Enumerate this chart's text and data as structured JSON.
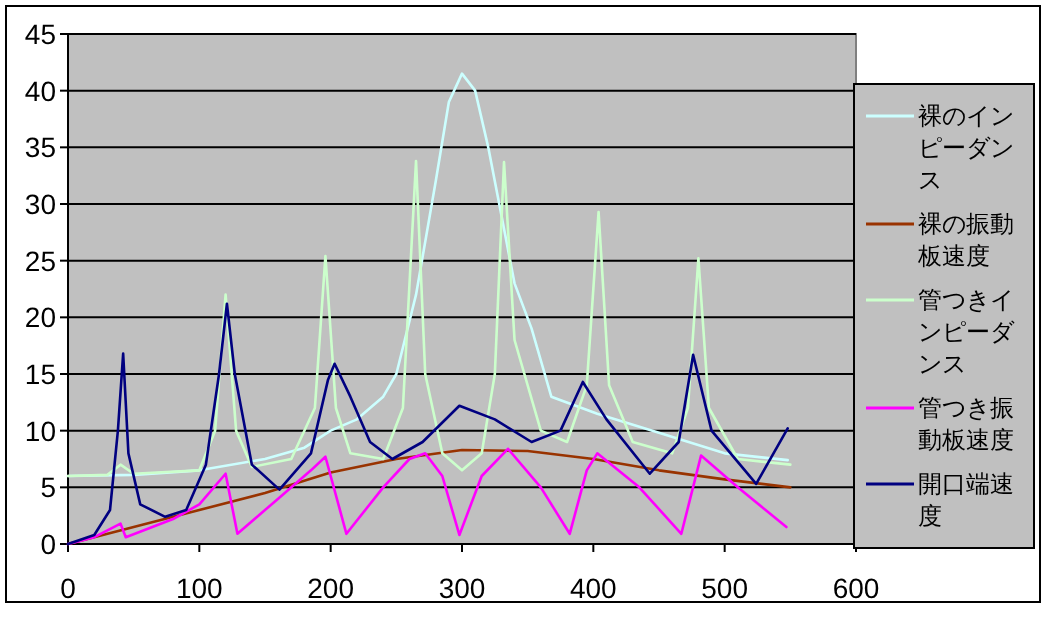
{
  "chart_data": {
    "type": "line",
    "xlim": [
      0,
      600
    ],
    "xticks": [
      0,
      100,
      200,
      300,
      400,
      500,
      600
    ],
    "ylim": [
      0,
      45
    ],
    "yticks": [
      0,
      5,
      10,
      15,
      20,
      25,
      30,
      35,
      40,
      45
    ],
    "grid": "y",
    "legend": "right",
    "marker": "none",
    "line_style": "solid",
    "series": [
      {
        "name": "裸のインピーダンス",
        "color": "#ccffff",
        "x": [
          0,
          50,
          100,
          150,
          180,
          200,
          220,
          240,
          250,
          265,
          280,
          290,
          300,
          310,
          320,
          330,
          340,
          353,
          368,
          403,
          453,
          500,
          548
        ],
        "values": [
          6,
          6.1,
          6.5,
          7.5,
          8.5,
          10,
          11,
          13,
          15,
          22,
          32,
          39,
          41.5,
          40,
          35,
          29,
          23,
          19,
          13,
          11.5,
          9.7,
          8,
          7.4
        ]
      },
      {
        "name": "裸の振動板速度",
        "color": "#993300",
        "x": [
          0,
          50,
          100,
          150,
          200,
          250,
          300,
          350,
          400,
          450,
          500,
          550
        ],
        "values": [
          0,
          1.5,
          3,
          4.5,
          6.3,
          7.5,
          8.3,
          8.2,
          7.5,
          6.5,
          5.7,
          5
        ]
      },
      {
        "name": "管つきインピーダンス",
        "color": "#ccffcc",
        "x": [
          0,
          30,
          40,
          50,
          100,
          112,
          120,
          128,
          140,
          170,
          188,
          196,
          204,
          215,
          240,
          255,
          265,
          272,
          285,
          300,
          315,
          325,
          332,
          340,
          360,
          380,
          395,
          404,
          412,
          430,
          460,
          472,
          480,
          488,
          510,
          550
        ],
        "values": [
          6,
          6.1,
          7,
          6.2,
          6.5,
          10,
          22,
          10,
          6.8,
          7.5,
          12,
          25.4,
          12,
          8,
          7.5,
          12,
          33.8,
          15,
          8,
          6.5,
          8,
          15,
          33.7,
          18,
          10,
          9,
          14,
          29.3,
          14,
          9,
          8,
          12,
          25.2,
          12,
          7.5,
          7
        ]
      },
      {
        "name": "管つき振動板速度",
        "color": "#ff00ff",
        "x": [
          0,
          20,
          40,
          44,
          80,
          100,
          120,
          129,
          160,
          185,
          196,
          212,
          240,
          260,
          272,
          285,
          298,
          315,
          335,
          360,
          382,
          395,
          403,
          435,
          467,
          482,
          510,
          547
        ],
        "values": [
          0,
          0.6,
          1.8,
          0.6,
          2.2,
          3.5,
          6.2,
          0.9,
          4,
          6.5,
          7.7,
          0.9,
          5,
          7.5,
          8,
          6,
          0.8,
          6,
          8.4,
          5,
          0.9,
          6.5,
          8,
          5,
          0.9,
          7.8,
          5,
          1.5
        ]
      },
      {
        "name": "開口端速度",
        "color": "#000080",
        "x": [
          0,
          20,
          32,
          38,
          42,
          46,
          55,
          74,
          90,
          105,
          115,
          121,
          127,
          140,
          161,
          185,
          198,
          203,
          215,
          230,
          247,
          270,
          298,
          325,
          353,
          375,
          392,
          410,
          443,
          465,
          476,
          490,
          524,
          548
        ],
        "values": [
          0,
          0.8,
          3,
          10,
          16.8,
          8,
          3.5,
          2.4,
          3,
          7,
          15,
          21.2,
          15,
          7,
          4.8,
          8,
          14.5,
          15.9,
          13,
          9,
          7.5,
          9,
          12.2,
          11,
          9,
          10,
          14.3,
          11,
          6.2,
          9,
          16.7,
          10,
          5.3,
          10.2
        ]
      }
    ]
  }
}
